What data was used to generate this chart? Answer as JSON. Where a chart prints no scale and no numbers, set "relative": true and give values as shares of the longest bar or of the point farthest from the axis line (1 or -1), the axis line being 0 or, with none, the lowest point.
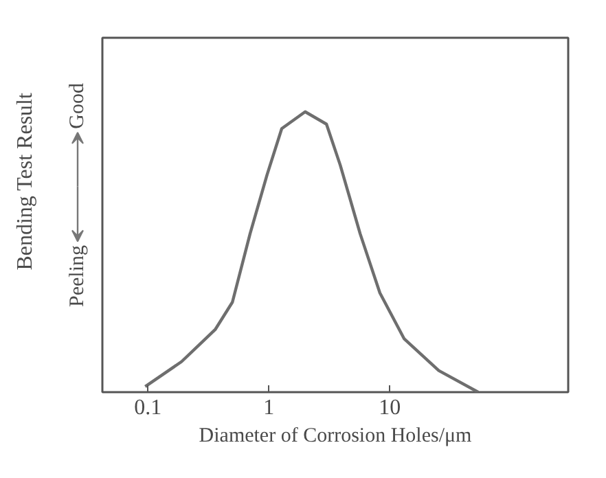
{
  "chart_data": {
    "type": "line",
    "xlabel": "Diameter of Corrosion Holes/μm",
    "ylabel": "Bending Test Result",
    "annotations": [
      "Good",
      "Peeling"
    ],
    "relative": true,
    "log": "x",
    "xlim": [
      0.042,
      300
    ],
    "xticks": [
      0.1,
      1,
      10
    ],
    "tick_labels": "x",
    "grid": false,
    "series": [
      {
        "color": "#6e6e6e",
        "x": [
          0.095,
          0.19,
          0.36,
          0.5,
          0.7,
          0.97,
          1.28,
          2.0,
          3.0,
          3.9,
          5.7,
          8.3,
          13.2,
          25.5,
          54
        ],
        "values": [
          0.02,
          0.109,
          0.223,
          0.321,
          0.565,
          0.777,
          0.94,
          1.0,
          0.956,
          0.81,
          0.565,
          0.354,
          0.19,
          0.077,
          0
        ]
      }
    ]
  }
}
